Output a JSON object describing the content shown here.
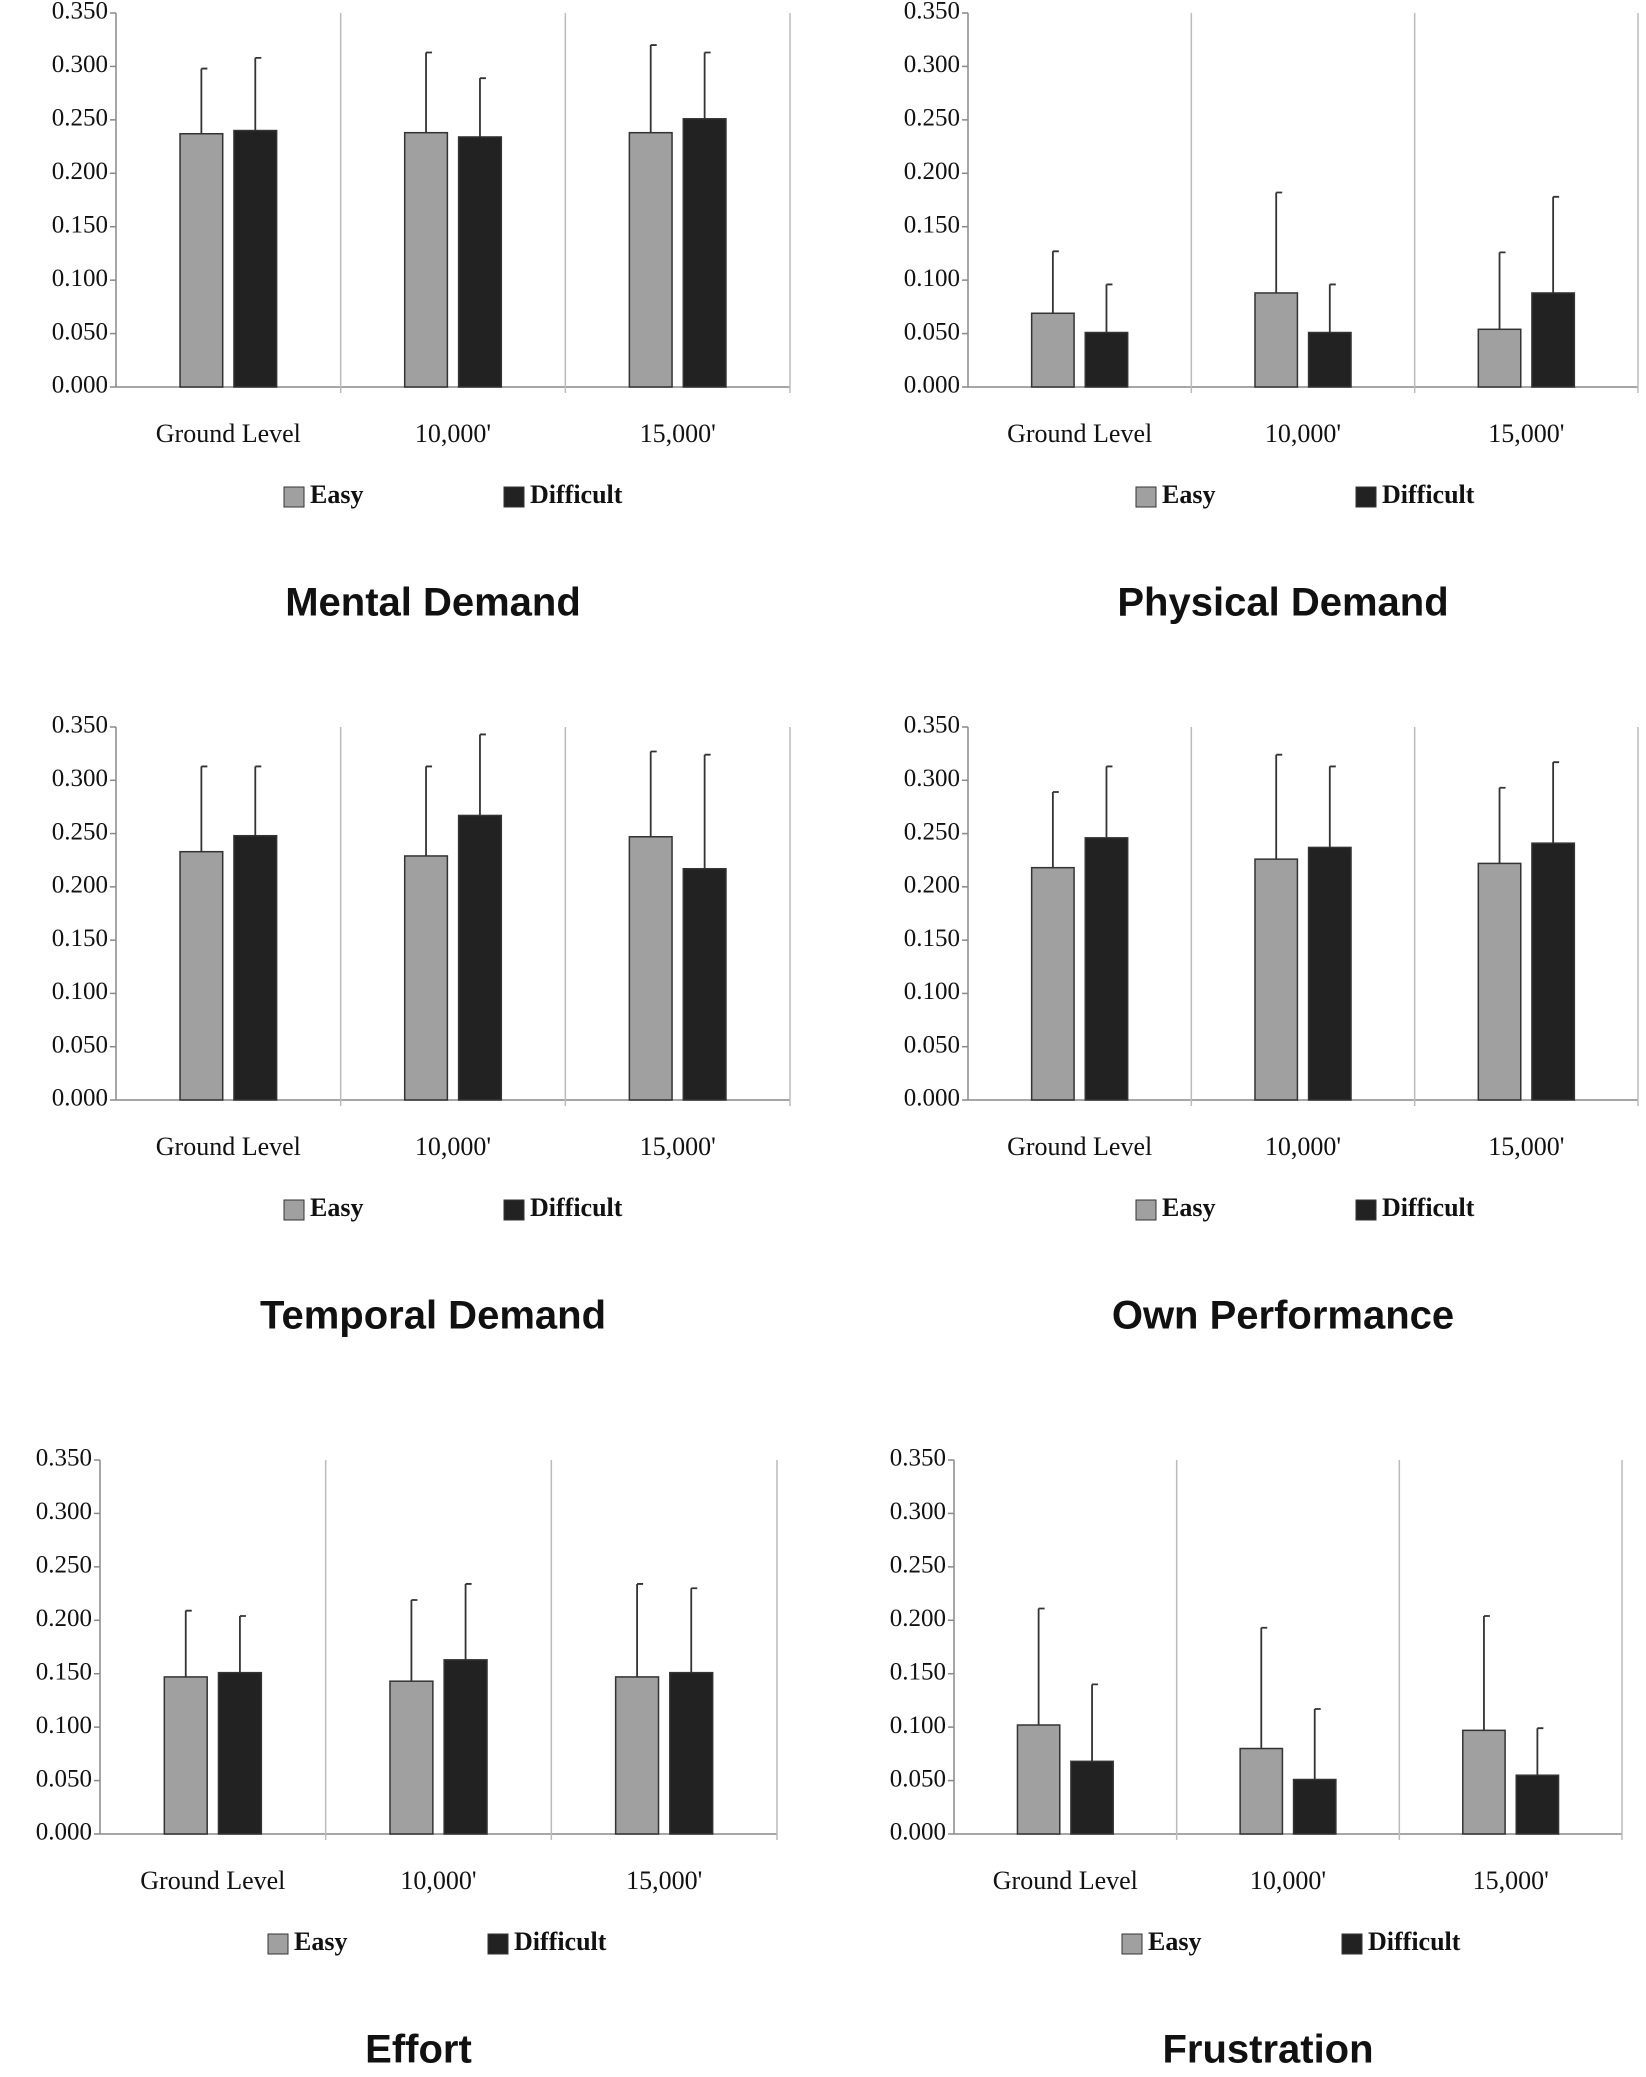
{
  "chart_data": [
    {
      "type": "bar",
      "title": "Mental Demand",
      "categories": [
        "Ground Level",
        "10,000'",
        "15,000'"
      ],
      "series": [
        {
          "name": "Easy",
          "color": "#a0a0a0",
          "values": [
            0.237,
            0.238,
            0.238
          ],
          "errors": [
            0.061,
            0.075,
            0.082
          ]
        },
        {
          "name": "Difficult",
          "color": "#222222",
          "values": [
            0.24,
            0.234,
            0.251
          ],
          "errors": [
            0.068,
            0.055,
            0.062
          ]
        }
      ],
      "ylim": [
        0,
        0.35
      ],
      "yticks": [
        {
          "value": 0,
          "label": "0.000"
        },
        {
          "value": 0.05,
          "label": "0.050"
        },
        {
          "value": 0.1,
          "label": "0.100"
        },
        {
          "value": 0.15,
          "label": "0.150"
        },
        {
          "value": 0.2,
          "label": "0.200"
        },
        {
          "value": 0.25,
          "label": "0.250"
        },
        {
          "value": 0.3,
          "label": "0.300"
        },
        {
          "value": 0.35,
          "label": "0.350"
        }
      ]
    },
    {
      "type": "bar",
      "title": "Physical Demand",
      "categories": [
        "Ground Level",
        "10,000'",
        "15,000'"
      ],
      "series": [
        {
          "name": "Easy",
          "color": "#a0a0a0",
          "values": [
            0.069,
            0.088,
            0.054
          ],
          "errors": [
            0.058,
            0.094,
            0.072
          ]
        },
        {
          "name": "Difficult",
          "color": "#222222",
          "values": [
            0.051,
            0.051,
            0.088
          ],
          "errors": [
            0.045,
            0.045,
            0.09
          ]
        }
      ],
      "ylim": [
        0,
        0.35
      ],
      "yticks": [
        {
          "value": 0,
          "label": "0.000"
        },
        {
          "value": 0.05,
          "label": "0.050"
        },
        {
          "value": 0.1,
          "label": "0.100"
        },
        {
          "value": 0.15,
          "label": "0.150"
        },
        {
          "value": 0.2,
          "label": "0.200"
        },
        {
          "value": 0.25,
          "label": "0.250"
        },
        {
          "value": 0.3,
          "label": "0.300"
        },
        {
          "value": 0.35,
          "label": "0.350"
        }
      ]
    },
    {
      "type": "bar",
      "title": "Temporal Demand",
      "categories": [
        "Ground Level",
        "10,000'",
        "15,000'"
      ],
      "series": [
        {
          "name": "Easy",
          "color": "#a0a0a0",
          "values": [
            0.233,
            0.229,
            0.247
          ],
          "errors": [
            0.08,
            0.084,
            0.08
          ]
        },
        {
          "name": "Difficult",
          "color": "#222222",
          "values": [
            0.248,
            0.267,
            0.217
          ],
          "errors": [
            0.065,
            0.076,
            0.107
          ]
        }
      ],
      "ylim": [
        0,
        0.35
      ],
      "yticks": [
        {
          "value": 0,
          "label": "0.000"
        },
        {
          "value": 0.05,
          "label": "0.050"
        },
        {
          "value": 0.1,
          "label": "0.100"
        },
        {
          "value": 0.15,
          "label": "0.150"
        },
        {
          "value": 0.2,
          "label": "0.200"
        },
        {
          "value": 0.25,
          "label": "0.250"
        },
        {
          "value": 0.3,
          "label": "0.300"
        },
        {
          "value": 0.35,
          "label": "0.350"
        }
      ]
    },
    {
      "type": "bar",
      "title": "Own Performance",
      "categories": [
        "Ground Level",
        "10,000'",
        "15,000'"
      ],
      "series": [
        {
          "name": "Easy",
          "color": "#a0a0a0",
          "values": [
            0.218,
            0.226,
            0.222
          ],
          "errors": [
            0.071,
            0.098,
            0.071
          ]
        },
        {
          "name": "Difficult",
          "color": "#222222",
          "values": [
            0.246,
            0.237,
            0.241
          ],
          "errors": [
            0.067,
            0.076,
            0.076
          ]
        }
      ],
      "ylim": [
        0,
        0.35
      ],
      "yticks": [
        {
          "value": 0,
          "label": "0.000"
        },
        {
          "value": 0.05,
          "label": "0.050"
        },
        {
          "value": 0.1,
          "label": "0.100"
        },
        {
          "value": 0.15,
          "label": "0.150"
        },
        {
          "value": 0.2,
          "label": "0.200"
        },
        {
          "value": 0.25,
          "label": "0.250"
        },
        {
          "value": 0.3,
          "label": "0.300"
        },
        {
          "value": 0.35,
          "label": "0.350"
        }
      ]
    },
    {
      "type": "bar",
      "title": "Effort",
      "categories": [
        "Ground Level",
        "10,000'",
        "15,000'"
      ],
      "series": [
        {
          "name": "Easy",
          "color": "#a0a0a0",
          "values": [
            0.147,
            0.143,
            0.147
          ],
          "errors": [
            0.062,
            0.076,
            0.087
          ]
        },
        {
          "name": "Difficult",
          "color": "#222222",
          "values": [
            0.151,
            0.163,
            0.151
          ],
          "errors": [
            0.053,
            0.071,
            0.079
          ]
        }
      ],
      "ylim": [
        0,
        0.35
      ],
      "yticks": [
        {
          "value": 0,
          "label": "0.000"
        },
        {
          "value": 0.05,
          "label": "0.050"
        },
        {
          "value": 0.1,
          "label": "0.100"
        },
        {
          "value": 0.15,
          "label": "0.150"
        },
        {
          "value": 0.2,
          "label": "0.200"
        },
        {
          "value": 0.25,
          "label": "0.250"
        },
        {
          "value": 0.3,
          "label": "0.300"
        },
        {
          "value": 0.35,
          "label": "0.350"
        }
      ]
    },
    {
      "type": "bar",
      "title": "Frustration",
      "categories": [
        "Ground Level",
        "10,000'",
        "15,000'"
      ],
      "series": [
        {
          "name": "Easy",
          "color": "#a0a0a0",
          "values": [
            0.102,
            0.08,
            0.097
          ],
          "errors": [
            0.109,
            0.113,
            0.107
          ]
        },
        {
          "name": "Difficult",
          "color": "#222222",
          "values": [
            0.068,
            0.051,
            0.055
          ],
          "errors": [
            0.072,
            0.066,
            0.044
          ]
        }
      ],
      "ylim": [
        0,
        0.35
      ],
      "yticks": [
        {
          "value": 0,
          "label": "0.000"
        },
        {
          "value": 0.05,
          "label": "0.050"
        },
        {
          "value": 0.1,
          "label": "0.100"
        },
        {
          "value": 0.15,
          "label": "0.150"
        },
        {
          "value": 0.2,
          "label": "0.200"
        },
        {
          "value": 0.25,
          "label": "0.250"
        },
        {
          "value": 0.3,
          "label": "0.300"
        },
        {
          "value": 0.35,
          "label": "0.350"
        }
      ]
    }
  ]
}
